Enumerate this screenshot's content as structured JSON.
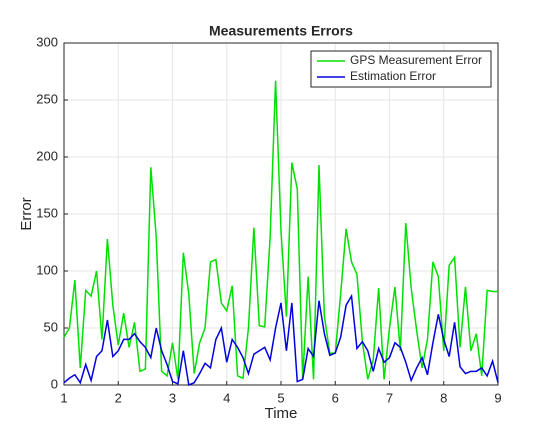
{
  "chart_data": {
    "type": "line",
    "title": "Measurements Errors",
    "xlabel": "Time",
    "ylabel": "Error",
    "x": [
      1.0,
      1.1,
      1.2,
      1.3,
      1.4,
      1.5,
      1.6,
      1.7,
      1.8,
      1.9,
      2.0,
      2.1,
      2.2,
      2.3,
      2.4,
      2.5,
      2.6,
      2.7,
      2.8,
      2.9,
      3.0,
      3.1,
      3.2,
      3.3,
      3.4,
      3.5,
      3.6,
      3.7,
      3.8,
      3.9,
      4.0,
      4.1,
      4.2,
      4.3,
      4.4,
      4.5,
      4.6,
      4.7,
      4.8,
      4.9,
      5.0,
      5.1,
      5.2,
      5.3,
      5.4,
      5.5,
      5.6,
      5.7,
      5.8,
      5.9,
      6.0,
      6.1,
      6.2,
      6.3,
      6.4,
      6.5,
      6.6,
      6.7,
      6.8,
      6.9,
      7.0,
      7.1,
      7.2,
      7.3,
      7.4,
      7.5,
      7.6,
      7.7,
      7.8,
      7.9,
      8.0,
      8.1,
      8.2,
      8.3,
      8.4,
      8.5,
      8.6,
      8.7,
      8.8,
      8.9,
      9.0
    ],
    "series": [
      {
        "name": "GPS Measurement Error",
        "color": "#00e000",
        "values": [
          42,
          50,
          92,
          15,
          83,
          78,
          100,
          40,
          128,
          70,
          35,
          63,
          33,
          55,
          12,
          14,
          191,
          130,
          12,
          8,
          37,
          5,
          116,
          80,
          10,
          37,
          50,
          108,
          110,
          72,
          65,
          87,
          8,
          6,
          50,
          138,
          52,
          51,
          130,
          267,
          135,
          60,
          195,
          172,
          5,
          95,
          5,
          193,
          60,
          28,
          28,
          80,
          137,
          108,
          97,
          38,
          5,
          22,
          85,
          5,
          50,
          86,
          30,
          142,
          85,
          48,
          15,
          40,
          108,
          95,
          30,
          105,
          112,
          33,
          86,
          30,
          45,
          8,
          83,
          82,
          82
        ]
      },
      {
        "name": "Estimation Error",
        "color": "#0000e0",
        "values": [
          2,
          6,
          9,
          2,
          18,
          4,
          25,
          30,
          57,
          25,
          30,
          40,
          40,
          45,
          38,
          33,
          24,
          50,
          30,
          18,
          3,
          1,
          30,
          0,
          2,
          10,
          19,
          15,
          40,
          50,
          20,
          40,
          33,
          24,
          10,
          27,
          30,
          33,
          22,
          50,
          72,
          30,
          72,
          3,
          5,
          32,
          25,
          74,
          45,
          26,
          28,
          42,
          70,
          78,
          32,
          38,
          30,
          12,
          32,
          20,
          24,
          37,
          33,
          20,
          4,
          15,
          24,
          9,
          37,
          62,
          40,
          25,
          55,
          16,
          10,
          12,
          12,
          15,
          8,
          21,
          2
        ]
      }
    ],
    "xlim": [
      1,
      9
    ],
    "xticks": [
      1,
      2,
      3,
      4,
      5,
      6,
      7,
      8,
      9
    ],
    "ylim": [
      0,
      300
    ],
    "yticks": [
      0,
      50,
      100,
      150,
      200,
      250,
      300
    ],
    "grid": true,
    "legend": "northeast"
  }
}
